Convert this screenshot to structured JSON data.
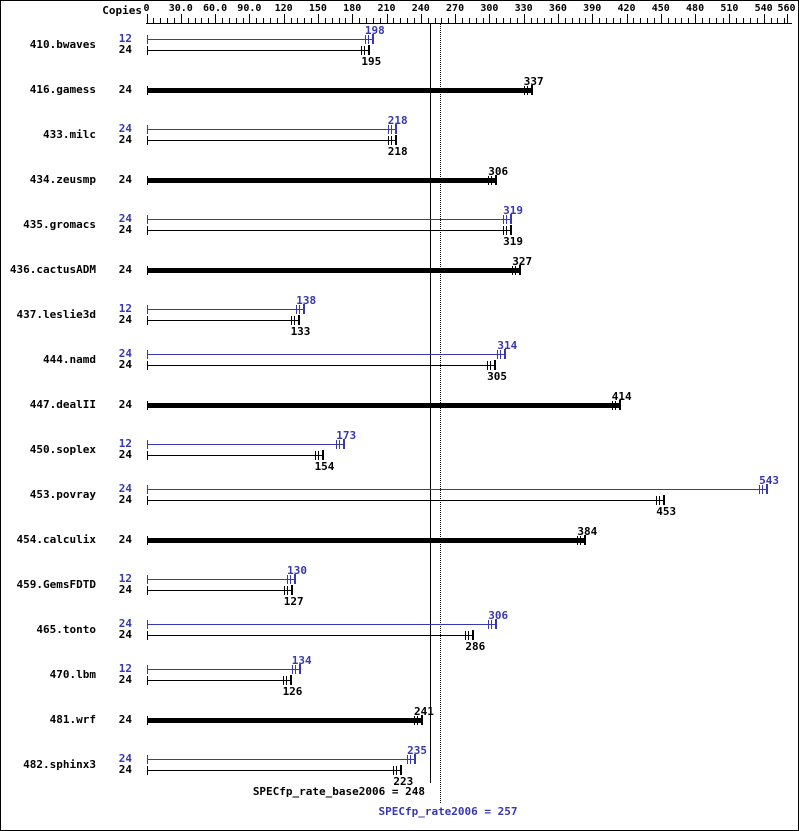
{
  "header": {
    "copies_label": "Copies"
  },
  "axis": {
    "min": 0,
    "max": 560,
    "major_step": 30,
    "minor_step": 6,
    "major_labels": [
      "0",
      "30.0",
      "60.0",
      "90.0",
      "120",
      "150",
      "180",
      "210",
      "240",
      "270",
      "300",
      "330",
      "360",
      "390",
      "420",
      "450",
      "480",
      "510",
      "540",
      "560"
    ]
  },
  "colors": {
    "peak_blue": "#3838b0",
    "base_black": "#000000"
  },
  "reference_lines": {
    "base": 248,
    "peak": 257
  },
  "footer": {
    "base_label": "SPECfp_rate_base2006 = 248",
    "peak_label": "SPECfp_rate2006 = 257"
  },
  "chart_data": {
    "type": "bar",
    "orientation": "horizontal",
    "title": "SPECfp_rate2006 results",
    "xlabel": "",
    "ylabel": "Copies",
    "xlim": [
      0,
      560
    ],
    "grid": false,
    "legend_position": "none",
    "benchmarks": [
      {
        "name": "410.bwaves",
        "bars": [
          {
            "series": "peak",
            "copies": 12,
            "value": 198
          },
          {
            "series": "base",
            "copies": 24,
            "value": 195
          }
        ]
      },
      {
        "name": "416.gamess",
        "bars": [
          {
            "series": "base",
            "copies": 24,
            "value": 337,
            "thick": true
          }
        ]
      },
      {
        "name": "433.milc",
        "bars": [
          {
            "series": "peak",
            "copies": 24,
            "value": 218
          },
          {
            "series": "base",
            "copies": 24,
            "value": 218
          }
        ]
      },
      {
        "name": "434.zeusmp",
        "bars": [
          {
            "series": "base",
            "copies": 24,
            "value": 306,
            "thick": true
          }
        ]
      },
      {
        "name": "435.gromacs",
        "bars": [
          {
            "series": "peak",
            "copies": 24,
            "value": 319
          },
          {
            "series": "base",
            "copies": 24,
            "value": 319
          }
        ]
      },
      {
        "name": "436.cactusADM",
        "bars": [
          {
            "series": "base",
            "copies": 24,
            "value": 327,
            "thick": true
          }
        ]
      },
      {
        "name": "437.leslie3d",
        "bars": [
          {
            "series": "peak",
            "copies": 12,
            "value": 138
          },
          {
            "series": "base",
            "copies": 24,
            "value": 133
          }
        ]
      },
      {
        "name": "444.namd",
        "bars": [
          {
            "series": "peak",
            "copies": 24,
            "value": 314
          },
          {
            "series": "base",
            "copies": 24,
            "value": 305
          }
        ]
      },
      {
        "name": "447.dealII",
        "bars": [
          {
            "series": "base",
            "copies": 24,
            "value": 414,
            "thick": true
          }
        ]
      },
      {
        "name": "450.soplex",
        "bars": [
          {
            "series": "peak",
            "copies": 12,
            "value": 173
          },
          {
            "series": "base",
            "copies": 24,
            "value": 154
          }
        ]
      },
      {
        "name": "453.povray",
        "bars": [
          {
            "series": "peak",
            "copies": 24,
            "value": 543
          },
          {
            "series": "base",
            "copies": 24,
            "value": 453
          }
        ]
      },
      {
        "name": "454.calculix",
        "bars": [
          {
            "series": "base",
            "copies": 24,
            "value": 384,
            "thick": true
          }
        ]
      },
      {
        "name": "459.GemsFDTD",
        "bars": [
          {
            "series": "peak",
            "copies": 12,
            "value": 130
          },
          {
            "series": "base",
            "copies": 24,
            "value": 127
          }
        ]
      },
      {
        "name": "465.tonto",
        "bars": [
          {
            "series": "peak",
            "copies": 24,
            "value": 306
          },
          {
            "series": "base",
            "copies": 24,
            "value": 286
          }
        ]
      },
      {
        "name": "470.lbm",
        "bars": [
          {
            "series": "peak",
            "copies": 12,
            "value": 134
          },
          {
            "series": "base",
            "copies": 24,
            "value": 126
          }
        ]
      },
      {
        "name": "481.wrf",
        "bars": [
          {
            "series": "base",
            "copies": 24,
            "value": 241,
            "thick": true
          }
        ]
      },
      {
        "name": "482.sphinx3",
        "bars": [
          {
            "series": "peak",
            "copies": 24,
            "value": 235
          },
          {
            "series": "base",
            "copies": 24,
            "value": 223
          }
        ]
      }
    ]
  }
}
